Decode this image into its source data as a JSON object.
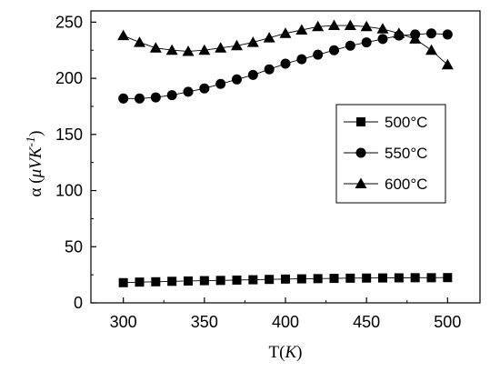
{
  "chart_data": {
    "type": "line",
    "title": "",
    "xlabel": {
      "prefix": "T(",
      "unit": "K",
      "suffix": ")"
    },
    "ylabel": {
      "symbol": "α",
      "unit_mu": "μ",
      "unit_main": "VK",
      "unit_exp": "-1"
    },
    "xlim": [
      280,
      520
    ],
    "ylim": [
      0,
      260
    ],
    "xticks": [
      300,
      350,
      400,
      450,
      500
    ],
    "yticks": [
      0,
      50,
      100,
      150,
      200,
      250
    ],
    "grid": false,
    "legend_position": "right-middle",
    "x": [
      300,
      310,
      320,
      330,
      340,
      350,
      360,
      370,
      380,
      390,
      400,
      410,
      420,
      430,
      440,
      450,
      460,
      470,
      480,
      490,
      500
    ],
    "series": [
      {
        "name": "500°C",
        "marker": "square",
        "values": [
          18,
          18.5,
          18.8,
          19.2,
          19.5,
          19.8,
          20,
          20.3,
          20.6,
          20.9,
          21.2,
          21.4,
          21.6,
          21.8,
          22,
          22.1,
          22.2,
          22.3,
          22.4,
          22.4,
          22.5
        ]
      },
      {
        "name": "550°C",
        "marker": "circle",
        "values": [
          182,
          182,
          183,
          185,
          188,
          191,
          195,
          199,
          203,
          208,
          213,
          217,
          221,
          225,
          229,
          232,
          235,
          238,
          239,
          240,
          239
        ]
      },
      {
        "name": "600°C",
        "marker": "triangle",
        "values": [
          238,
          232,
          227,
          225,
          224,
          225,
          227,
          229,
          232,
          236,
          240,
          243,
          246,
          247,
          247,
          246,
          244,
          240,
          235,
          225,
          212
        ]
      }
    ]
  }
}
